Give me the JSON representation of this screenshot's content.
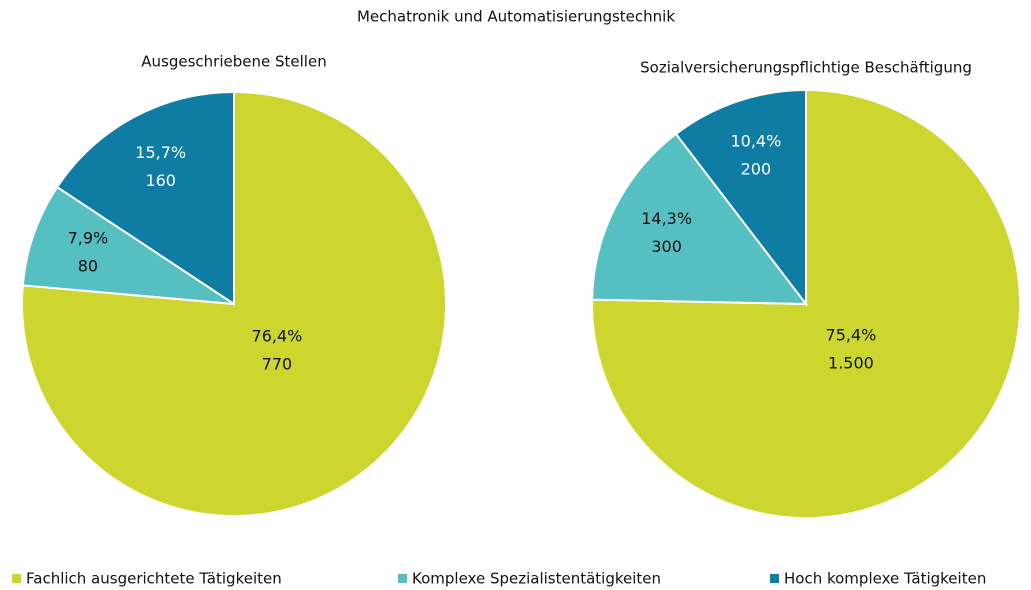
{
  "title": "Mechatronik und Automatisierungstechnik",
  "legend": {
    "labels": [
      "Fachlich ausgerichtete Tätigkeiten",
      "Komplexe Spezialistentätigkeiten",
      "Hoch komplexe Tätigkeiten"
    ],
    "colors": [
      "#cdd62e",
      "#56bfc1",
      "#0f7da3"
    ]
  },
  "chart_data": [
    {
      "type": "pie",
      "title": "Ausgeschriebene Stellen",
      "values": [
        76.4,
        7.9,
        15.7
      ],
      "value_labels": [
        "76,4%",
        "7,9%",
        "15,7%"
      ],
      "counts": [
        770,
        80,
        160
      ],
      "count_labels": [
        "770",
        "80",
        "160"
      ]
    },
    {
      "type": "pie",
      "title": "Sozialversicherungspflichtige Beschäftigung",
      "values": [
        75.4,
        14.3,
        10.4
      ],
      "value_labels": [
        "75,4%",
        "14,3%",
        "10,4%"
      ],
      "counts": [
        1500,
        300,
        200
      ],
      "count_labels": [
        "1.500",
        "300",
        "200"
      ]
    }
  ]
}
